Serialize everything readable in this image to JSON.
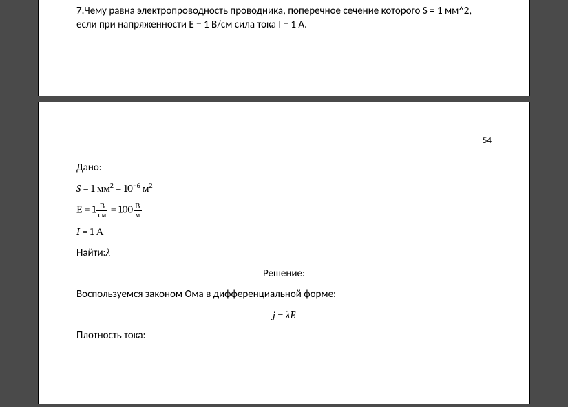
{
  "page1": {
    "problem": "7.Чему равна электропроводность проводника, поперечное сечение которого S = 1 мм^2, если при напряженности E = 1 В/см сила тока I = 1 А."
  },
  "page2": {
    "pageNumber": "54",
    "givenLabel": "Дано:",
    "s_var": "S",
    "s_eq": " = 1 мм",
    "s_sup1": "2",
    "s_eq2": " = 10",
    "s_sup2": "−6",
    "s_unit": " м",
    "s_sup3": "2",
    "e_var": "E",
    "e_eq": "  =  1",
    "e_frac1_num": "В",
    "e_frac1_den": "см",
    "e_eq2": " = 100",
    "e_frac2_num": "В",
    "e_frac2_den": "м",
    "i_var": " I",
    "i_eq": "  =  1 А",
    "findLabel": "Найти:",
    "findVar": "λ",
    "solutionLabel": "Решение:",
    "text1": "Воспользуемся законом Ома в дифференциальной форме:",
    "eq_j": "j",
    "eq_eq": " = ",
    "eq_lE": "λE",
    "text2": "Плотность тока:"
  },
  "style": {
    "bodyBg": "#4a4a4a",
    "pageBg": "#ffffff",
    "textColor": "#000000",
    "fontBody": "Calibri, Arial, sans-serif",
    "fontMath": "Cambria Math, Cambria, Times New Roman, serif",
    "baseFontSize": 15,
    "fracFontSize": 11,
    "pageWidth": 715,
    "pagePaddingX": 55,
    "canvasW": 825,
    "canvasH": 592
  }
}
